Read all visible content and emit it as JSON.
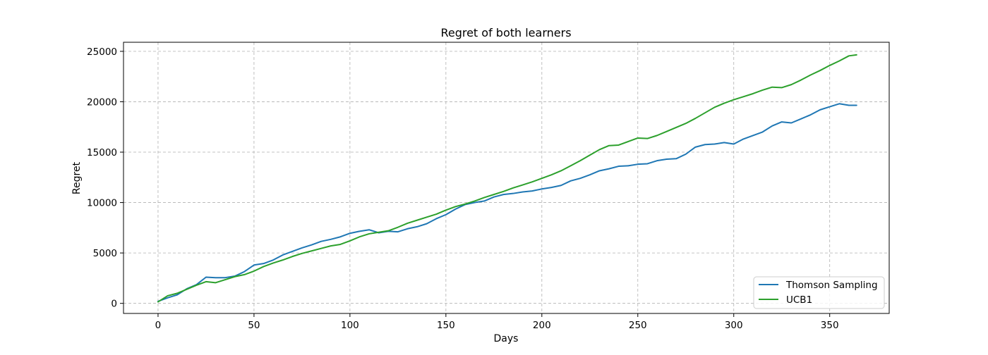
{
  "chart_data": {
    "type": "line",
    "title": "Regret of both learners",
    "xlabel": "Days",
    "ylabel": "Regret",
    "xlim": [
      -18,
      381
    ],
    "ylim": [
      -1000,
      25900
    ],
    "x_ticks": [
      0,
      50,
      100,
      150,
      200,
      250,
      300,
      350
    ],
    "y_ticks": [
      0,
      5000,
      10000,
      15000,
      20000,
      25000
    ],
    "x_tick_labels": [
      "0",
      "50",
      "100",
      "150",
      "200",
      "250",
      "300",
      "350"
    ],
    "y_tick_labels": [
      "0",
      "5000",
      "10000",
      "15000",
      "20000",
      "25000"
    ],
    "grid": true,
    "legend_position": "lower right",
    "series": [
      {
        "name": "Thomson Sampling",
        "color": "#1f77b4",
        "points": [
          [
            0,
            200
          ],
          [
            5,
            550
          ],
          [
            10,
            850
          ],
          [
            15,
            1450
          ],
          [
            20,
            1850
          ],
          [
            25,
            2600
          ],
          [
            30,
            2550
          ],
          [
            35,
            2550
          ],
          [
            40,
            2700
          ],
          [
            45,
            3150
          ],
          [
            50,
            3800
          ],
          [
            55,
            3950
          ],
          [
            60,
            4300
          ],
          [
            65,
            4800
          ],
          [
            70,
            5150
          ],
          [
            75,
            5500
          ],
          [
            80,
            5800
          ],
          [
            85,
            6150
          ],
          [
            90,
            6350
          ],
          [
            95,
            6600
          ],
          [
            100,
            6950
          ],
          [
            105,
            7150
          ],
          [
            110,
            7300
          ],
          [
            115,
            7000
          ],
          [
            120,
            7150
          ],
          [
            125,
            7100
          ],
          [
            130,
            7400
          ],
          [
            135,
            7600
          ],
          [
            140,
            7900
          ],
          [
            145,
            8400
          ],
          [
            150,
            8800
          ],
          [
            155,
            9350
          ],
          [
            160,
            9800
          ],
          [
            165,
            10000
          ],
          [
            170,
            10150
          ],
          [
            175,
            10550
          ],
          [
            180,
            10800
          ],
          [
            185,
            10900
          ],
          [
            190,
            11050
          ],
          [
            195,
            11150
          ],
          [
            200,
            11350
          ],
          [
            205,
            11500
          ],
          [
            210,
            11700
          ],
          [
            215,
            12150
          ],
          [
            220,
            12400
          ],
          [
            225,
            12750
          ],
          [
            230,
            13150
          ],
          [
            235,
            13350
          ],
          [
            240,
            13600
          ],
          [
            245,
            13650
          ],
          [
            250,
            13800
          ],
          [
            255,
            13850
          ],
          [
            260,
            14150
          ],
          [
            265,
            14300
          ],
          [
            270,
            14350
          ],
          [
            275,
            14800
          ],
          [
            280,
            15500
          ],
          [
            285,
            15750
          ],
          [
            290,
            15800
          ],
          [
            295,
            15950
          ],
          [
            300,
            15800
          ],
          [
            305,
            16300
          ],
          [
            310,
            16650
          ],
          [
            315,
            17000
          ],
          [
            320,
            17600
          ],
          [
            325,
            18000
          ],
          [
            330,
            17900
          ],
          [
            335,
            18300
          ],
          [
            340,
            18700
          ],
          [
            345,
            19200
          ],
          [
            350,
            19500
          ],
          [
            355,
            19800
          ],
          [
            360,
            19650
          ],
          [
            364,
            19650
          ]
        ]
      },
      {
        "name": "UCB1",
        "color": "#2ca02c",
        "points": [
          [
            0,
            150
          ],
          [
            5,
            750
          ],
          [
            10,
            1000
          ],
          [
            15,
            1400
          ],
          [
            20,
            1800
          ],
          [
            25,
            2150
          ],
          [
            30,
            2050
          ],
          [
            35,
            2350
          ],
          [
            40,
            2650
          ],
          [
            45,
            2850
          ],
          [
            50,
            3200
          ],
          [
            55,
            3650
          ],
          [
            60,
            4000
          ],
          [
            65,
            4300
          ],
          [
            70,
            4650
          ],
          [
            75,
            4950
          ],
          [
            80,
            5200
          ],
          [
            85,
            5450
          ],
          [
            90,
            5700
          ],
          [
            95,
            5850
          ],
          [
            100,
            6200
          ],
          [
            105,
            6600
          ],
          [
            110,
            6900
          ],
          [
            115,
            7050
          ],
          [
            120,
            7200
          ],
          [
            125,
            7550
          ],
          [
            130,
            7950
          ],
          [
            135,
            8250
          ],
          [
            140,
            8550
          ],
          [
            145,
            8850
          ],
          [
            150,
            9250
          ],
          [
            155,
            9600
          ],
          [
            160,
            9850
          ],
          [
            165,
            10150
          ],
          [
            170,
            10500
          ],
          [
            175,
            10800
          ],
          [
            180,
            11100
          ],
          [
            185,
            11450
          ],
          [
            190,
            11750
          ],
          [
            195,
            12050
          ],
          [
            200,
            12400
          ],
          [
            205,
            12750
          ],
          [
            210,
            13150
          ],
          [
            215,
            13650
          ],
          [
            220,
            14150
          ],
          [
            225,
            14700
          ],
          [
            230,
            15250
          ],
          [
            235,
            15650
          ],
          [
            240,
            15700
          ],
          [
            245,
            16050
          ],
          [
            250,
            16400
          ],
          [
            255,
            16350
          ],
          [
            260,
            16650
          ],
          [
            265,
            17050
          ],
          [
            270,
            17450
          ],
          [
            275,
            17850
          ],
          [
            280,
            18350
          ],
          [
            285,
            18900
          ],
          [
            290,
            19450
          ],
          [
            295,
            19850
          ],
          [
            300,
            20200
          ],
          [
            305,
            20500
          ],
          [
            310,
            20800
          ],
          [
            315,
            21150
          ],
          [
            320,
            21450
          ],
          [
            325,
            21400
          ],
          [
            330,
            21700
          ],
          [
            335,
            22150
          ],
          [
            340,
            22650
          ],
          [
            345,
            23100
          ],
          [
            350,
            23600
          ],
          [
            355,
            24050
          ],
          [
            360,
            24550
          ],
          [
            364,
            24650
          ]
        ]
      }
    ]
  }
}
